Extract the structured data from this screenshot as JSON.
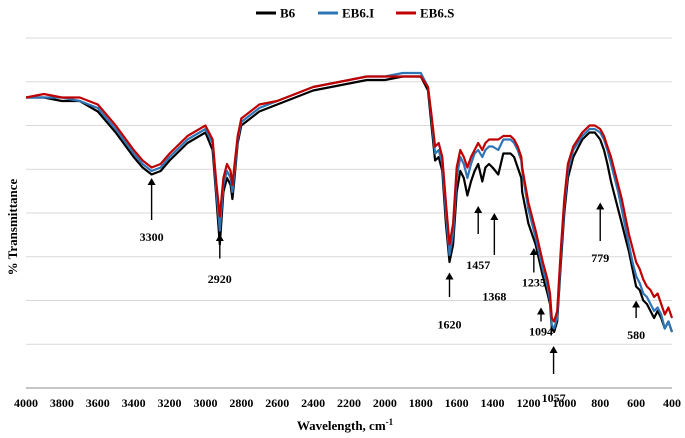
{
  "chart_data": {
    "type": "line",
    "title": "",
    "xlabel": "Wavelength, cm",
    "xlabel_superscript": "-1",
    "ylabel": "% Transmittance",
    "xlim": [
      4000,
      400
    ],
    "x_reversed": true,
    "ylim": [
      0,
      100
    ],
    "y_tick_labels_shown": false,
    "grid": "horizontal",
    "legend_position": "top-center",
    "x_ticks": [
      4000,
      3800,
      3600,
      3400,
      3200,
      3000,
      2800,
      2600,
      2400,
      2200,
      2000,
      1800,
      1600,
      1400,
      1200,
      1000,
      800,
      600,
      400
    ],
    "series": [
      {
        "name": "B6",
        "color": "#000000",
        "points": [
          [
            4000,
            83
          ],
          [
            3900,
            83
          ],
          [
            3800,
            82
          ],
          [
            3700,
            82
          ],
          [
            3600,
            79
          ],
          [
            3500,
            73
          ],
          [
            3400,
            66
          ],
          [
            3350,
            63
          ],
          [
            3300,
            61
          ],
          [
            3250,
            62
          ],
          [
            3200,
            65
          ],
          [
            3100,
            70
          ],
          [
            3000,
            73
          ],
          [
            2960,
            68
          ],
          [
            2940,
            55
          ],
          [
            2920,
            41
          ],
          [
            2900,
            56
          ],
          [
            2880,
            60
          ],
          [
            2860,
            58
          ],
          [
            2850,
            54
          ],
          [
            2840,
            59
          ],
          [
            2820,
            70
          ],
          [
            2800,
            75
          ],
          [
            2700,
            79
          ],
          [
            2600,
            81
          ],
          [
            2500,
            83
          ],
          [
            2400,
            85
          ],
          [
            2300,
            86
          ],
          [
            2200,
            87
          ],
          [
            2100,
            88
          ],
          [
            2000,
            88
          ],
          [
            1900,
            89
          ],
          [
            1800,
            89
          ],
          [
            1760,
            85
          ],
          [
            1740,
            75
          ],
          [
            1720,
            65
          ],
          [
            1700,
            66
          ],
          [
            1680,
            62
          ],
          [
            1660,
            47
          ],
          [
            1640,
            36
          ],
          [
            1620,
            41
          ],
          [
            1600,
            56
          ],
          [
            1580,
            62
          ],
          [
            1560,
            60
          ],
          [
            1540,
            55
          ],
          [
            1520,
            59
          ],
          [
            1500,
            62
          ],
          [
            1480,
            64
          ],
          [
            1457,
            59
          ],
          [
            1440,
            63
          ],
          [
            1420,
            64
          ],
          [
            1400,
            63
          ],
          [
            1368,
            61
          ],
          [
            1340,
            67
          ],
          [
            1320,
            67
          ],
          [
            1300,
            67
          ],
          [
            1280,
            66
          ],
          [
            1260,
            63
          ],
          [
            1240,
            60
          ],
          [
            1235,
            56
          ],
          [
            1200,
            47
          ],
          [
            1160,
            41
          ],
          [
            1120,
            32
          ],
          [
            1094,
            27
          ],
          [
            1080,
            24
          ],
          [
            1070,
            17
          ],
          [
            1057,
            16
          ],
          [
            1040,
            19
          ],
          [
            1020,
            35
          ],
          [
            1000,
            50
          ],
          [
            980,
            60
          ],
          [
            950,
            66
          ],
          [
            900,
            71
          ],
          [
            860,
            73
          ],
          [
            830,
            73
          ],
          [
            800,
            71
          ],
          [
            779,
            68
          ],
          [
            760,
            64
          ],
          [
            740,
            59
          ],
          [
            720,
            55
          ],
          [
            700,
            51
          ],
          [
            680,
            47
          ],
          [
            660,
            43
          ],
          [
            640,
            39
          ],
          [
            620,
            34
          ],
          [
            600,
            29
          ],
          [
            580,
            28
          ],
          [
            560,
            25
          ],
          [
            540,
            24
          ],
          [
            520,
            22
          ],
          [
            500,
            20
          ],
          [
            480,
            22
          ],
          [
            460,
            20
          ],
          [
            440,
            17
          ],
          [
            420,
            19
          ],
          [
            400,
            16
          ]
        ]
      },
      {
        "name": "EB6.I",
        "color": "#2e75b6",
        "points": [
          [
            4000,
            83
          ],
          [
            3900,
            83
          ],
          [
            3800,
            83
          ],
          [
            3700,
            82
          ],
          [
            3600,
            80
          ],
          [
            3500,
            74
          ],
          [
            3400,
            67
          ],
          [
            3350,
            64
          ],
          [
            3300,
            62
          ],
          [
            3250,
            63
          ],
          [
            3200,
            66
          ],
          [
            3100,
            71
          ],
          [
            3000,
            74
          ],
          [
            2960,
            70
          ],
          [
            2940,
            57
          ],
          [
            2920,
            45
          ],
          [
            2900,
            58
          ],
          [
            2880,
            62
          ],
          [
            2860,
            60
          ],
          [
            2850,
            56
          ],
          [
            2840,
            61
          ],
          [
            2820,
            71
          ],
          [
            2800,
            76
          ],
          [
            2700,
            80
          ],
          [
            2600,
            82
          ],
          [
            2500,
            84
          ],
          [
            2400,
            86
          ],
          [
            2300,
            87
          ],
          [
            2200,
            88
          ],
          [
            2100,
            89
          ],
          [
            2000,
            89
          ],
          [
            1900,
            90
          ],
          [
            1800,
            90
          ],
          [
            1760,
            86
          ],
          [
            1740,
            77
          ],
          [
            1720,
            67
          ],
          [
            1700,
            68
          ],
          [
            1680,
            64
          ],
          [
            1660,
            50
          ],
          [
            1640,
            38
          ],
          [
            1620,
            44
          ],
          [
            1600,
            60
          ],
          [
            1580,
            66
          ],
          [
            1560,
            64
          ],
          [
            1540,
            60
          ],
          [
            1520,
            64
          ],
          [
            1500,
            67
          ],
          [
            1480,
            68
          ],
          [
            1457,
            66
          ],
          [
            1440,
            68
          ],
          [
            1420,
            69
          ],
          [
            1400,
            69
          ],
          [
            1368,
            68
          ],
          [
            1340,
            71
          ],
          [
            1320,
            71
          ],
          [
            1300,
            71
          ],
          [
            1280,
            70
          ],
          [
            1260,
            68
          ],
          [
            1240,
            65
          ],
          [
            1235,
            62
          ],
          [
            1200,
            51
          ],
          [
            1160,
            43
          ],
          [
            1120,
            34
          ],
          [
            1094,
            29
          ],
          [
            1080,
            25
          ],
          [
            1070,
            18
          ],
          [
            1057,
            17
          ],
          [
            1040,
            20
          ],
          [
            1020,
            37
          ],
          [
            1000,
            52
          ],
          [
            980,
            62
          ],
          [
            950,
            68
          ],
          [
            900,
            72
          ],
          [
            860,
            74
          ],
          [
            830,
            74
          ],
          [
            800,
            73
          ],
          [
            779,
            71
          ],
          [
            760,
            68
          ],
          [
            740,
            64
          ],
          [
            720,
            60
          ],
          [
            700,
            56
          ],
          [
            680,
            51
          ],
          [
            660,
            46
          ],
          [
            640,
            41
          ],
          [
            620,
            36
          ],
          [
            600,
            32
          ],
          [
            580,
            30
          ],
          [
            560,
            27
          ],
          [
            540,
            26
          ],
          [
            520,
            24
          ],
          [
            500,
            22
          ],
          [
            480,
            23
          ],
          [
            460,
            21
          ],
          [
            440,
            17
          ],
          [
            420,
            19
          ],
          [
            400,
            16
          ]
        ]
      },
      {
        "name": "EB6.S",
        "color": "#c00000",
        "points": [
          [
            4000,
            83
          ],
          [
            3900,
            84
          ],
          [
            3800,
            83
          ],
          [
            3700,
            83
          ],
          [
            3600,
            81
          ],
          [
            3500,
            75
          ],
          [
            3400,
            68
          ],
          [
            3350,
            65
          ],
          [
            3300,
            63
          ],
          [
            3250,
            64
          ],
          [
            3200,
            67
          ],
          [
            3100,
            72
          ],
          [
            3000,
            75
          ],
          [
            2960,
            71
          ],
          [
            2940,
            59
          ],
          [
            2920,
            49
          ],
          [
            2900,
            60
          ],
          [
            2880,
            64
          ],
          [
            2860,
            62
          ],
          [
            2850,
            58
          ],
          [
            2840,
            63
          ],
          [
            2820,
            72
          ],
          [
            2800,
            77
          ],
          [
            2700,
            81
          ],
          [
            2600,
            82
          ],
          [
            2500,
            84
          ],
          [
            2400,
            86
          ],
          [
            2300,
            87
          ],
          [
            2200,
            88
          ],
          [
            2100,
            89
          ],
          [
            2000,
            89
          ],
          [
            1900,
            89
          ],
          [
            1800,
            89
          ],
          [
            1760,
            86
          ],
          [
            1740,
            78
          ],
          [
            1720,
            69
          ],
          [
            1700,
            70
          ],
          [
            1680,
            66
          ],
          [
            1660,
            53
          ],
          [
            1640,
            41
          ],
          [
            1620,
            47
          ],
          [
            1600,
            63
          ],
          [
            1580,
            68
          ],
          [
            1560,
            66
          ],
          [
            1540,
            63
          ],
          [
            1520,
            66
          ],
          [
            1500,
            68
          ],
          [
            1480,
            70
          ],
          [
            1457,
            68
          ],
          [
            1440,
            70
          ],
          [
            1420,
            71
          ],
          [
            1400,
            71
          ],
          [
            1368,
            71
          ],
          [
            1340,
            72
          ],
          [
            1320,
            72
          ],
          [
            1300,
            72
          ],
          [
            1280,
            71
          ],
          [
            1260,
            69
          ],
          [
            1240,
            66
          ],
          [
            1235,
            63
          ],
          [
            1200,
            53
          ],
          [
            1160,
            45
          ],
          [
            1120,
            36
          ],
          [
            1094,
            31
          ],
          [
            1080,
            27
          ],
          [
            1070,
            20
          ],
          [
            1057,
            19
          ],
          [
            1040,
            22
          ],
          [
            1020,
            39
          ],
          [
            1000,
            54
          ],
          [
            980,
            64
          ],
          [
            950,
            69
          ],
          [
            900,
            73
          ],
          [
            860,
            75
          ],
          [
            830,
            75
          ],
          [
            800,
            74
          ],
          [
            779,
            72
          ],
          [
            760,
            69
          ],
          [
            740,
            66
          ],
          [
            720,
            62
          ],
          [
            700,
            58
          ],
          [
            680,
            54
          ],
          [
            660,
            49
          ],
          [
            640,
            44
          ],
          [
            620,
            40
          ],
          [
            600,
            36
          ],
          [
            580,
            34
          ],
          [
            560,
            31
          ],
          [
            540,
            29
          ],
          [
            520,
            28
          ],
          [
            500,
            26
          ],
          [
            480,
            27
          ],
          [
            460,
            24
          ],
          [
            440,
            21
          ],
          [
            420,
            23
          ],
          [
            400,
            20
          ]
        ]
      }
    ],
    "annotations": [
      {
        "label": "3300",
        "x": 3300,
        "arrow_from": 48,
        "arrow_to": 60,
        "label_at": 42
      },
      {
        "label": "2920",
        "x": 2920,
        "arrow_from": 37,
        "arrow_to": 44,
        "label_at": 30
      },
      {
        "label": "1620",
        "x": 1640,
        "arrow_from": 26,
        "arrow_to": 33,
        "label_at": 17
      },
      {
        "label": "1457",
        "x": 1480,
        "arrow_from": 44,
        "arrow_to": 52,
        "label_at": 34
      },
      {
        "label": "1368",
        "x": 1390,
        "arrow_from": 38,
        "arrow_to": 50,
        "label_at": 25
      },
      {
        "label": "1235",
        "x": 1170,
        "arrow_from": 33,
        "arrow_to": 40,
        "label_at": 29
      },
      {
        "label": "1094",
        "x": 1130,
        "arrow_from": 19,
        "arrow_to": 23,
        "label_at": 15
      },
      {
        "label": "1057",
        "x": 1060,
        "arrow_from": 4,
        "arrow_to": 12,
        "label_at": -4
      },
      {
        "label": "779",
        "x": 800,
        "arrow_from": 42,
        "arrow_to": 53,
        "label_at": 36
      },
      {
        "label": "580",
        "x": 600,
        "arrow_from": 20,
        "arrow_to": 25,
        "label_at": 14
      }
    ]
  }
}
